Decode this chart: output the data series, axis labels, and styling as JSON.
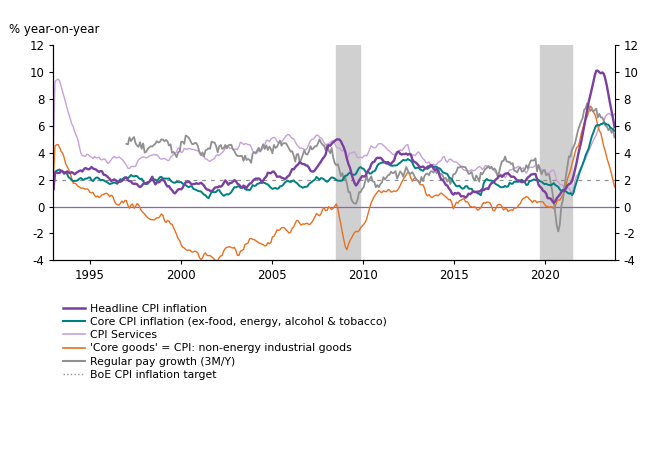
{
  "ylabel_text": "% year-on-year",
  "ylim": [
    -4,
    12
  ],
  "yticks": [
    -4,
    -2,
    0,
    2,
    4,
    6,
    8,
    10,
    12
  ],
  "xlim": [
    1993.0,
    2023.83
  ],
  "xticks": [
    1995,
    2000,
    2005,
    2010,
    2015,
    2020
  ],
  "recession_bands": [
    {
      "start": 2008.5,
      "end": 2009.83
    },
    {
      "start": 2019.75,
      "end": 2021.5
    }
  ],
  "boe_target": 2.0,
  "colors": {
    "headline": "#7B3FA0",
    "core_cpi": "#008080",
    "services": "#C8A0DC",
    "core_goods": "#E87020",
    "pay_growth": "#909090",
    "zero_line": "#9060C0",
    "boe_target": "#909090",
    "recession": "#D0D0D0"
  },
  "legend": [
    {
      "label": "Headline CPI inflation",
      "color": "#7B3FA0",
      "lw": 1.8,
      "ls": "solid"
    },
    {
      "label": "Core CPI inflation (ex-food, energy, alcohol & tobacco)",
      "color": "#008080",
      "lw": 1.5,
      "ls": "solid"
    },
    {
      "label": "CPI Services",
      "color": "#C8A0DC",
      "lw": 1.2,
      "ls": "solid"
    },
    {
      "label": "'Core goods' = CPI: non-energy industrial goods",
      "color": "#E87020",
      "lw": 1.2,
      "ls": "solid"
    },
    {
      "label": "Regular pay growth (3M/Y)",
      "color": "#909090",
      "lw": 1.5,
      "ls": "solid"
    },
    {
      "label": "BoE CPI inflation target",
      "color": "#909090",
      "lw": 1.0,
      "ls": "dotted"
    }
  ]
}
